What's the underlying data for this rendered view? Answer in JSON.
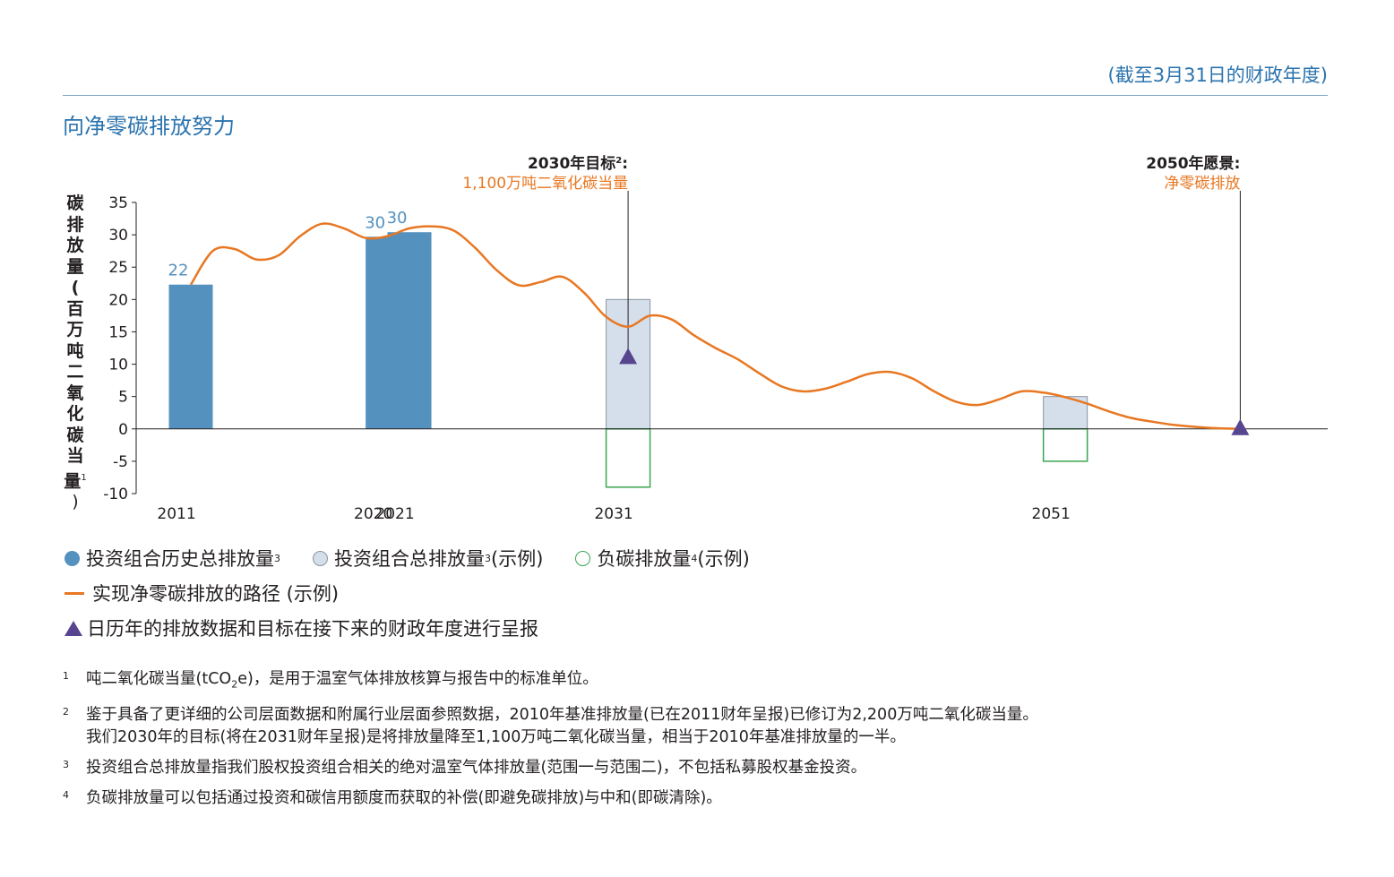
{
  "header": {
    "fiscal_note": "(截至3月31日的财政年度)",
    "title": "向净零碳排放努力"
  },
  "chart_data": {
    "type": "bar",
    "ylabel_chars": [
      "碳",
      "排",
      "放",
      "量",
      "(",
      "百",
      "万",
      "吨",
      "二",
      "氧",
      "化",
      "碳",
      "当",
      "量"
    ],
    "ylabel_sup": "1",
    "ylabel_close": ")",
    "ylim": [
      -10,
      35
    ],
    "yticks": [
      "35",
      "30",
      "25",
      "20",
      "15",
      "10",
      "5",
      "0",
      "-5",
      "-10"
    ],
    "ytick_values": [
      35,
      30,
      25,
      20,
      15,
      10,
      5,
      0,
      -5,
      -10
    ],
    "xlim": [
      2008.5,
      2063
    ],
    "x_tick_labels": [
      {
        "label": "2011",
        "x": 2011
      },
      {
        "label": "2020",
        "x": 2020
      },
      {
        "label": "2021",
        "x": 2021
      },
      {
        "label": "2031",
        "x": 2031
      },
      {
        "label": "2051",
        "x": 2051
      }
    ],
    "historical_bars": [
      {
        "x": 2011,
        "value": 22.3,
        "label": "22"
      },
      {
        "x": 2020,
        "value": 29.7,
        "label": "30"
      },
      {
        "x": 2021,
        "value": 30.4,
        "label": "30"
      }
    ],
    "total_bars_illustrative": [
      {
        "x": 2031,
        "value": 20
      },
      {
        "x": 2051,
        "value": 5
      }
    ],
    "negative_bars_illustrative": [
      {
        "x": 2031,
        "value": -9
      },
      {
        "x": 2051,
        "value": -5
      }
    ],
    "pathway_line": [
      [
        2011,
        22.3
      ],
      [
        2012,
        27.5
      ],
      [
        2013,
        27.8
      ],
      [
        2014,
        26.2
      ],
      [
        2015,
        26.8
      ],
      [
        2016,
        29.8
      ],
      [
        2017,
        31.7
      ],
      [
        2018,
        31.0
      ],
      [
        2019,
        29.5
      ],
      [
        2020,
        29.8
      ],
      [
        2021,
        31.0
      ],
      [
        2022,
        31.3
      ],
      [
        2023,
        30.7
      ],
      [
        2024,
        28.0
      ],
      [
        2025,
        24.5
      ],
      [
        2026,
        22.2
      ],
      [
        2027,
        22.7
      ],
      [
        2028,
        23.5
      ],
      [
        2029,
        21.0
      ],
      [
        2030,
        17.3
      ],
      [
        2031,
        15.8
      ],
      [
        2032,
        17.5
      ],
      [
        2033,
        16.9
      ],
      [
        2034,
        14.5
      ],
      [
        2035,
        12.5
      ],
      [
        2036,
        10.8
      ],
      [
        2037,
        8.6
      ],
      [
        2038,
        6.6
      ],
      [
        2039,
        5.8
      ],
      [
        2040,
        6.2
      ],
      [
        2041,
        7.3
      ],
      [
        2042,
        8.5
      ],
      [
        2043,
        8.8
      ],
      [
        2044,
        7.8
      ],
      [
        2045,
        5.8
      ],
      [
        2046,
        4.2
      ],
      [
        2047,
        3.7
      ],
      [
        2048,
        4.6
      ],
      [
        2049,
        5.8
      ],
      [
        2050,
        5.6
      ],
      [
        2051,
        4.9
      ],
      [
        2052,
        3.9
      ],
      [
        2053,
        2.7
      ],
      [
        2054,
        1.7
      ],
      [
        2055,
        1.1
      ],
      [
        2056,
        0.6
      ],
      [
        2057,
        0.3
      ],
      [
        2058,
        0.1
      ],
      [
        2059,
        0
      ]
    ],
    "targets": [
      {
        "x": 2031,
        "value": 11,
        "line_top_value": 36.8,
        "title": "2030年目标",
        "title_sup": "2",
        "title_suffix": ":",
        "subtitle": "1,100万吨二氧化碳当量"
      },
      {
        "x": 2059,
        "value": 0,
        "line_top_value": 36.8,
        "title": "2050年愿景",
        "title_sup": "",
        "title_suffix": ":",
        "subtitle": "净零碳排放"
      }
    ],
    "colors": {
      "historical": "#5491bf",
      "historical_label": "#5491bf",
      "total_fill": "#d5dfeb",
      "total_stroke": "#8b95a0",
      "negative_stroke": "#3aa650",
      "pathway": "#e87722",
      "target_marker": "#574590",
      "target_subtitle": "#e87722",
      "axis": "#231f20"
    }
  },
  "legend": {
    "historical": "投资组合历史总排放量",
    "historical_sup": "3",
    "total": "投资组合总排放量",
    "total_sup": "3",
    "total_suffix": "(示例)",
    "negative": "负碳排放量",
    "negative_sup": "4",
    "negative_suffix": "(示例)",
    "pathway": "实现净零碳排放的路径 (示例)",
    "marker": "日历年的排放数据和目标在接下来的财政年度进行呈报"
  },
  "footnotes": [
    {
      "num": "1",
      "text_a": "吨二氧化碳当量(tCO",
      "sub": "2",
      "text_b": "e)，是用于温室气体排放核算与报告中的标准单位。"
    },
    {
      "num": "2",
      "line1": "鉴于具备了更详细的公司层面数据和附属行业层面参照数据，2010年基准排放量(已在2011财年呈报)已修订为2,200万吨二氧化碳当量。",
      "line2": "我们2030年的目标(将在2031财年呈报)是将排放量降至1,100万吨二氧化碳当量，相当于2010年基准排放量的一半。"
    },
    {
      "num": "3",
      "text": "投资组合总排放量指我们股权投资组合相关的绝对温室气体排放量(范围一与范围二)，不包括私募股权基金投资。"
    },
    {
      "num": "4",
      "text": "负碳排放量可以包括通过投资和碳信用额度而获取的补偿(即避免碳排放)与中和(即碳清除)。"
    }
  ]
}
